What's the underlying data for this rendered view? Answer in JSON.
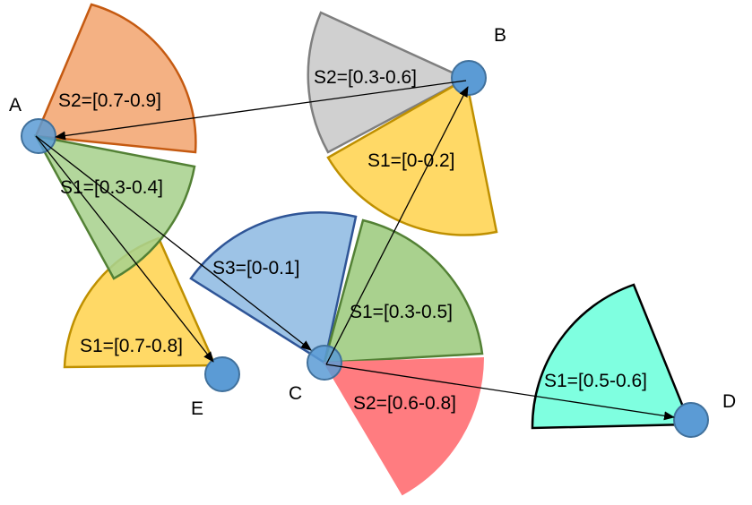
{
  "colors": {
    "node_fill": "#5b9bd5",
    "node_stroke": "#41719c",
    "arrow": "#000000",
    "orange_fill": "#f4b183",
    "orange_stroke": "#c55a11",
    "grey_fill": "#d0d0d0",
    "grey_stroke": "#7f7f7f",
    "yellow_fill": "#ffd966",
    "yellow_stroke": "#bf9000",
    "green_fill": "#a9d18e",
    "green_stroke": "#538135",
    "blue_fill": "#9dc3e6",
    "blue_stroke": "#2f5597",
    "red_fill": "#ff7c80",
    "red_stroke": "#ff7c80",
    "cyan_fill": "#7fffe0",
    "cyan_stroke": "#000000"
  },
  "nodes": [
    {
      "id": "A",
      "label": "A"
    },
    {
      "id": "B",
      "label": "B"
    },
    {
      "id": "C",
      "label": "C"
    },
    {
      "id": "D",
      "label": "D"
    },
    {
      "id": "E",
      "label": "E"
    }
  ],
  "sectors": [
    {
      "id": "a-s2",
      "node": "A",
      "label": "S2=[0.7-0.9]",
      "color": "orange"
    },
    {
      "id": "a-s1-green",
      "node": "A",
      "label": "S1=[0.3-0.4]",
      "color": "green"
    },
    {
      "id": "e-s1",
      "node": "E",
      "label": "S1=[0.7-0.8]",
      "color": "yellow"
    },
    {
      "id": "b-s2",
      "node": "B",
      "label": "S2=[0.3-0.6]",
      "color": "grey"
    },
    {
      "id": "b-s1",
      "node": "B",
      "label": "S1=[0-0.2]",
      "color": "yellow"
    },
    {
      "id": "c-s3",
      "node": "C",
      "label": "S3=[0-0.1]",
      "color": "blue"
    },
    {
      "id": "c-s1",
      "node": "C",
      "label": "S1=[0.3-0.5]",
      "color": "green"
    },
    {
      "id": "c-s2",
      "node": "C",
      "label": "S2=[0.6-0.8]",
      "color": "red"
    },
    {
      "id": "d-s1",
      "node": "D",
      "label": "S1=[0.5-0.6]",
      "color": "cyan"
    }
  ],
  "arrows": [
    {
      "from": "B",
      "to": "A"
    },
    {
      "from": "A",
      "to": "E"
    },
    {
      "from": "A",
      "to": "C"
    },
    {
      "from": "C",
      "to": "B"
    },
    {
      "from": "C",
      "to": "D"
    }
  ]
}
